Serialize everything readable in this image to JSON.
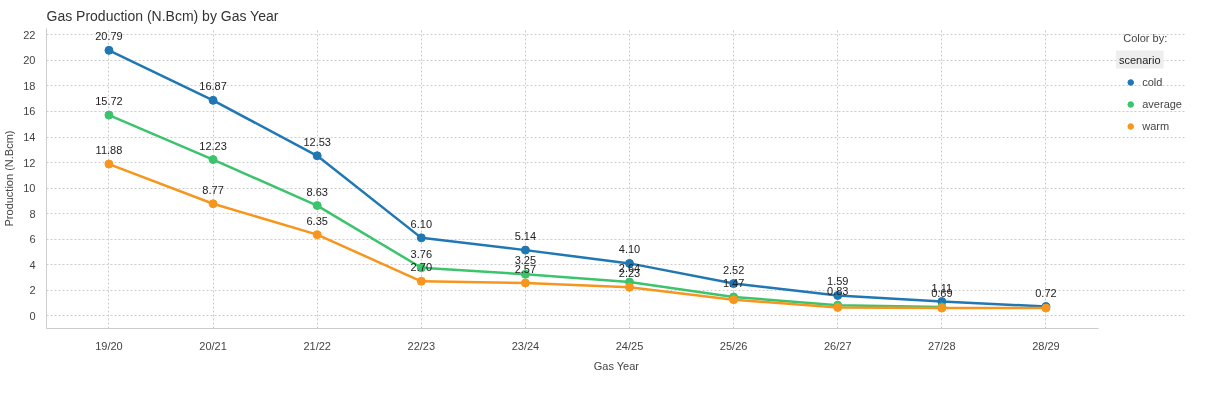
{
  "chart_data": {
    "type": "line",
    "title": "Gas Production (N.Bcm) by Gas Year",
    "xlabel": "Gas Year",
    "ylabel": "Production (N.Bcm)",
    "legend_title": "Color by:",
    "annotations": [
      "scenario"
    ],
    "categories": [
      "19/20",
      "20/21",
      "21/22",
      "22/23",
      "23/24",
      "24/25",
      "25/26",
      "26/27",
      "27/28",
      "28/29"
    ],
    "series": [
      {
        "name": "cold",
        "color": "#1f77b4",
        "values": [
          20.79,
          16.87,
          12.53,
          6.1,
          5.14,
          4.1,
          2.52,
          1.59,
          1.11,
          0.72
        ],
        "value_labels": [
          "20.79",
          "16.87",
          "12.53",
          "6.10",
          "5.14",
          "4.10",
          "2.52",
          "1.59",
          "1.11",
          "0.72"
        ]
      },
      {
        "name": "average",
        "color": "#3cc46c",
        "values": [
          15.72,
          12.23,
          8.63,
          3.76,
          3.25,
          2.64,
          1.47,
          0.83,
          0.69,
          null
        ],
        "value_labels": [
          "15.72",
          "12.23",
          "8.63",
          "3.76",
          "3.25",
          "2.64",
          "1.47",
          "0.83",
          "0.69",
          null
        ]
      },
      {
        "name": "warm",
        "color": "#f7961e",
        "values": [
          11.88,
          8.77,
          6.35,
          2.7,
          2.57,
          2.23,
          1.26,
          0.65,
          0.6,
          0.6
        ],
        "value_labels": [
          "11.88",
          "8.77",
          "6.35",
          "2.70",
          "2.57",
          "2.23",
          null,
          null,
          null,
          null
        ]
      }
    ],
    "ylim": [
      -1,
      22.5
    ],
    "yticks": [
      0,
      2,
      4,
      6,
      8,
      10,
      12,
      14,
      16,
      18,
      20,
      22
    ],
    "grid": true,
    "legend": "right",
    "marker": "circle",
    "line_style": "solid"
  }
}
